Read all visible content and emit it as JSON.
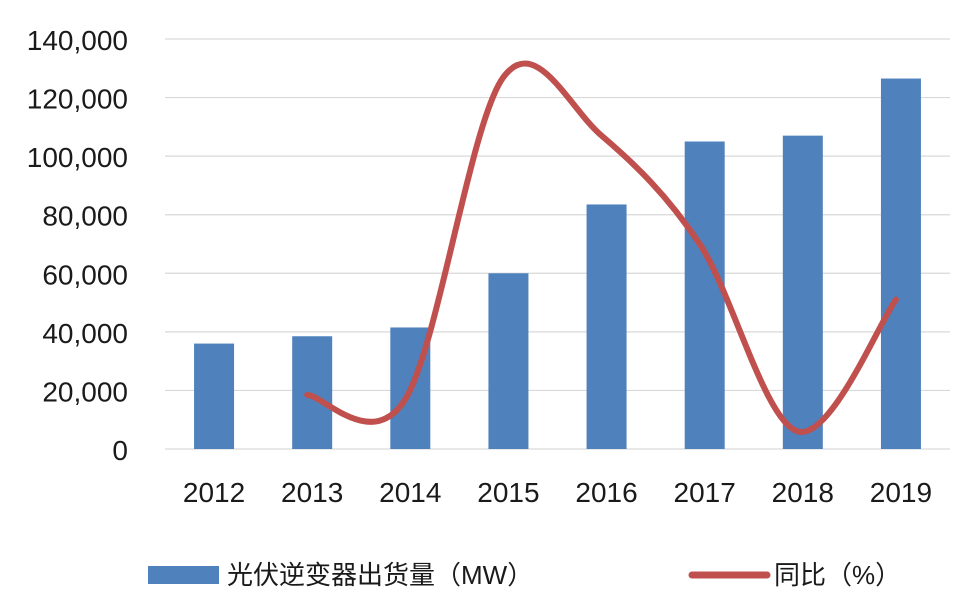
{
  "chart_data": {
    "type": "bar",
    "categories": [
      "2012",
      "2013",
      "2014",
      "2015",
      "2016",
      "2017",
      "2018",
      "2019"
    ],
    "series": [
      {
        "name": "光伏逆变器出货量（MW）",
        "type": "bar",
        "color": "#4f81bd",
        "values": [
          36000,
          38500,
          41500,
          60000,
          83500,
          105000,
          107000,
          126500
        ]
      },
      {
        "name": "同比（%）",
        "type": "line",
        "color": "#c0504d",
        "smooth": true,
        "values": [
          null,
          18500,
          17000,
          127000,
          107000,
          70000,
          6000,
          51000
        ]
      }
    ],
    "y_ticks": [
      "0",
      "20,000",
      "40,000",
      "60,000",
      "80,000",
      "100,000",
      "120,000",
      "140,000"
    ],
    "ylim": [
      0,
      140000
    ],
    "grid": true,
    "legend": "bottom"
  }
}
